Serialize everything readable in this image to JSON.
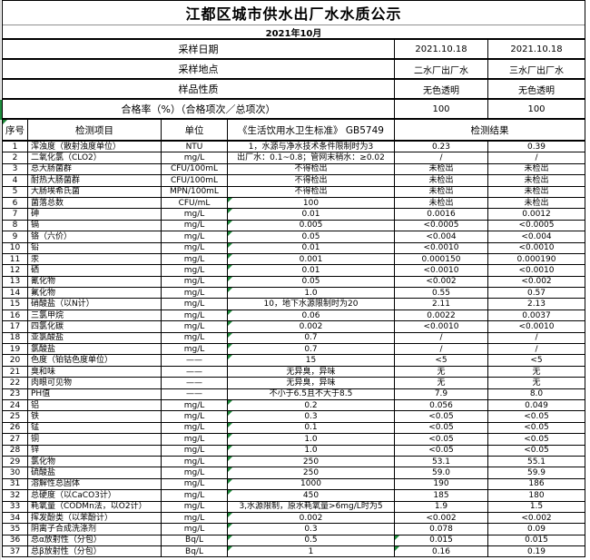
{
  "title": "江都区城市供水出厂水水质公示",
  "subtitle": "2021年10月",
  "info_rows": [
    {
      "label": "采样日期",
      "v1": "2021.10.18",
      "v2": "2021.10.18"
    },
    {
      "label": "采样地点",
      "v1": "二水厂出厂水",
      "v2": "三水厂出厂水"
    },
    {
      "label": "样品性质",
      "v1": "无色透明",
      "v2": "无色透明"
    }
  ],
  "rate_row": {
    "label": "合格率（%）（合格项次／总项次）",
    "v1": "100",
    "v2": "100"
  },
  "table_header": {
    "no": "序号",
    "item": "检测项目",
    "unit": "单位",
    "standard": "《生活饮用水卫生标准》 GB5749",
    "result": "检测结果",
    "no_mark": true
  },
  "rows": [
    {
      "no": "1",
      "item": "浑浊度（散射浊度单位）",
      "unit": "NTU",
      "standard": "1，水源与净水技术条件限制时为3",
      "r1": "0.23",
      "r2": "0.39",
      "std_mark": false,
      "r1_mark": false
    },
    {
      "no": "2",
      "item": "二氧化氯（CLO2）",
      "unit": "mg/L",
      "standard": "出厂水：0.1~0.8；管网末稍水：≥0.02",
      "r1": "/",
      "r2": "/",
      "std_mark": false,
      "r1_mark": false
    },
    {
      "no": "3",
      "item": "总大肠菌群",
      "unit": "CFU/100mL",
      "standard": "不得检出",
      "r1": "未检出",
      "r2": "未检出",
      "std_mark": false,
      "r1_mark": false
    },
    {
      "no": "4",
      "item": "耐热大肠菌群",
      "unit": "CFU/100mL",
      "standard": "不得检出",
      "r1": "未检出",
      "r2": "未检出",
      "std_mark": false,
      "r1_mark": false
    },
    {
      "no": "5",
      "item": "大肠埃希氏菌",
      "unit": "MPN/100mL",
      "standard": "不得检出",
      "r1": "未检出",
      "r2": "未检出",
      "std_mark": false,
      "r1_mark": false
    },
    {
      "no": "6",
      "item": "菌落总数",
      "unit": "CFU/mL",
      "standard": "100",
      "r1": "未检出",
      "r2": "未检出",
      "std_mark": true,
      "r1_mark": false
    },
    {
      "no": "7",
      "item": "砷",
      "unit": "mg/L",
      "standard": "0.01",
      "r1": "0.0016",
      "r2": "0.0012",
      "std_mark": true,
      "r1_mark": false
    },
    {
      "no": "8",
      "item": "镉",
      "unit": "mg/L",
      "standard": "0.005",
      "r1": "<0.0005",
      "r2": "<0.0005",
      "std_mark": true,
      "r1_mark": false
    },
    {
      "no": "9",
      "item": "铬（六价）",
      "unit": "mg/L",
      "standard": "0.05",
      "r1": "<0.004",
      "r2": "<0.004",
      "std_mark": true,
      "r1_mark": false
    },
    {
      "no": "10",
      "item": "铅",
      "unit": "mg/L",
      "standard": "0.01",
      "r1": "<0.0010",
      "r2": "<0.0010",
      "std_mark": true,
      "r1_mark": false
    },
    {
      "no": "11",
      "item": "汞",
      "unit": "mg/L",
      "standard": "0.001",
      "r1": "0.000150",
      "r2": "0.000190",
      "std_mark": true,
      "r1_mark": false
    },
    {
      "no": "12",
      "item": "硒",
      "unit": "mg/L",
      "standard": "0.01",
      "r1": "<0.0010",
      "r2": "<0.0010",
      "std_mark": true,
      "r1_mark": false
    },
    {
      "no": "13",
      "item": "氰化物",
      "unit": "mg/L",
      "standard": "0.05",
      "r1": "<0.002",
      "r2": "<0.002",
      "std_mark": true,
      "r1_mark": false
    },
    {
      "no": "14",
      "item": "氟化物",
      "unit": "mg/L",
      "standard": "1.0",
      "r1": "0.55",
      "r2": "0.57",
      "std_mark": true,
      "r1_mark": false
    },
    {
      "no": "15",
      "item": "硝酸盐（以N计）",
      "unit": "mg/L",
      "standard": "10，地下水源限制时为20",
      "r1": "2.11",
      "r2": "2.13",
      "std_mark": false,
      "r1_mark": false
    },
    {
      "no": "16",
      "item": "三氯甲烷",
      "unit": "mg/L",
      "standard": "0.06",
      "r1": "0.0022",
      "r2": "0.0037",
      "std_mark": true,
      "r1_mark": false
    },
    {
      "no": "17",
      "item": "四氯化碳",
      "unit": "mg/L",
      "standard": "0.002",
      "r1": "<0.0010",
      "r2": "<0.0010",
      "std_mark": true,
      "r1_mark": false
    },
    {
      "no": "18",
      "item": "亚氯酸盐",
      "unit": "mg/L",
      "standard": "0.7",
      "r1": "/",
      "r2": "/",
      "std_mark": true,
      "r1_mark": false
    },
    {
      "no": "19",
      "item": "氯酸盐",
      "unit": "mg/L",
      "standard": "0.7",
      "r1": "/",
      "r2": "/",
      "std_mark": true,
      "r1_mark": false
    },
    {
      "no": "20",
      "item": "色度（铂钴色度单位）",
      "unit": "——",
      "standard": "15",
      "r1": "<5",
      "r2": "<5",
      "std_mark": true,
      "r1_mark": false
    },
    {
      "no": "21",
      "item": "臭和味",
      "unit": "——",
      "standard": "无异臭，异味",
      "r1": "无",
      "r2": "无",
      "std_mark": false,
      "r1_mark": false
    },
    {
      "no": "22",
      "item": "肉眼可见物",
      "unit": "——",
      "standard": "无异臭，异味",
      "r1": "无",
      "r2": "无",
      "std_mark": false,
      "r1_mark": false
    },
    {
      "no": "23",
      "item": "PH值",
      "unit": "——",
      "standard": "不小于6.5且不大于8.5",
      "r1": "7.9",
      "r2": "8.0",
      "std_mark": false,
      "r1_mark": false
    },
    {
      "no": "24",
      "item": "铝",
      "unit": "mg/L",
      "standard": "0.2",
      "r1": "0.056",
      "r2": "0.049",
      "std_mark": true,
      "r1_mark": false
    },
    {
      "no": "25",
      "item": "铁",
      "unit": "mg/L",
      "standard": "0.3",
      "r1": "<0.05",
      "r2": "<0.05",
      "std_mark": true,
      "r1_mark": false
    },
    {
      "no": "26",
      "item": "锰",
      "unit": "mg/L",
      "standard": "0.1",
      "r1": "<0.05",
      "r2": "<0.05",
      "std_mark": true,
      "r1_mark": false
    },
    {
      "no": "27",
      "item": "铜",
      "unit": "mg/L",
      "standard": "1.0",
      "r1": "<0.05",
      "r2": "<0.05",
      "std_mark": true,
      "r1_mark": false
    },
    {
      "no": "28",
      "item": "锌",
      "unit": "mg/L",
      "standard": "1.0",
      "r1": "<0.05",
      "r2": "<0.05",
      "std_mark": true,
      "r1_mark": false
    },
    {
      "no": "29",
      "item": "氯化物",
      "unit": "mg/L",
      "standard": "250",
      "r1": "53.1",
      "r2": "55.1",
      "std_mark": true,
      "r1_mark": false
    },
    {
      "no": "30",
      "item": "硫酸盐",
      "unit": "mg/L",
      "standard": "250",
      "r1": "59.0",
      "r2": "59.9",
      "std_mark": true,
      "r1_mark": false
    },
    {
      "no": "31",
      "item": "溶解性总固体",
      "unit": "mg/L",
      "standard": "1000",
      "r1": "190",
      "r2": "186",
      "std_mark": true,
      "r1_mark": false
    },
    {
      "no": "32",
      "item": "总硬度（以CaCO3计）",
      "unit": "mg/L",
      "standard": "450",
      "r1": "185",
      "r2": "180",
      "std_mark": true,
      "r1_mark": false
    },
    {
      "no": "33",
      "item": "耗氧量（CODMn法，以O2计）",
      "unit": "mg/L",
      "standard": "3,水源限制，原水耗氧量>6mg/L时为5",
      "r1": "1.9",
      "r2": "1.5",
      "std_mark": false,
      "r1_mark": false
    },
    {
      "no": "34",
      "item": "挥发酚类（以苯酚计）",
      "unit": "mg/L",
      "standard": "0.002",
      "r1": "<0.002",
      "r2": "<0.002",
      "std_mark": true,
      "r1_mark": false
    },
    {
      "no": "35",
      "item": "阴离子合成洗涤剂",
      "unit": "mg/L",
      "standard": "0.3",
      "r1": "0.078",
      "r2": "0.09",
      "std_mark": true,
      "r1_mark": false
    },
    {
      "no": "36",
      "item": "总α放射性（分包）",
      "unit": "Bq/L",
      "standard": "0.5",
      "r1": "0.015",
      "r2": "0.015",
      "std_mark": true,
      "r1_mark": true
    },
    {
      "no": "37",
      "item": "总β放射性（分包）",
      "unit": "Bq/L",
      "standard": "1",
      "r1": "0.16",
      "r2": "0.19",
      "std_mark": true,
      "r1_mark": true
    }
  ],
  "icons": {
    "comment_indicator": "green-triangle-top-left",
    "selection_bar": "green-row-selection-edge"
  },
  "colors": {
    "comment_green": "#1f8a3b",
    "selection_green": "#1e8e3e",
    "grid_border": "#000000",
    "title_divider": "#909090",
    "background": "#ffffff"
  }
}
